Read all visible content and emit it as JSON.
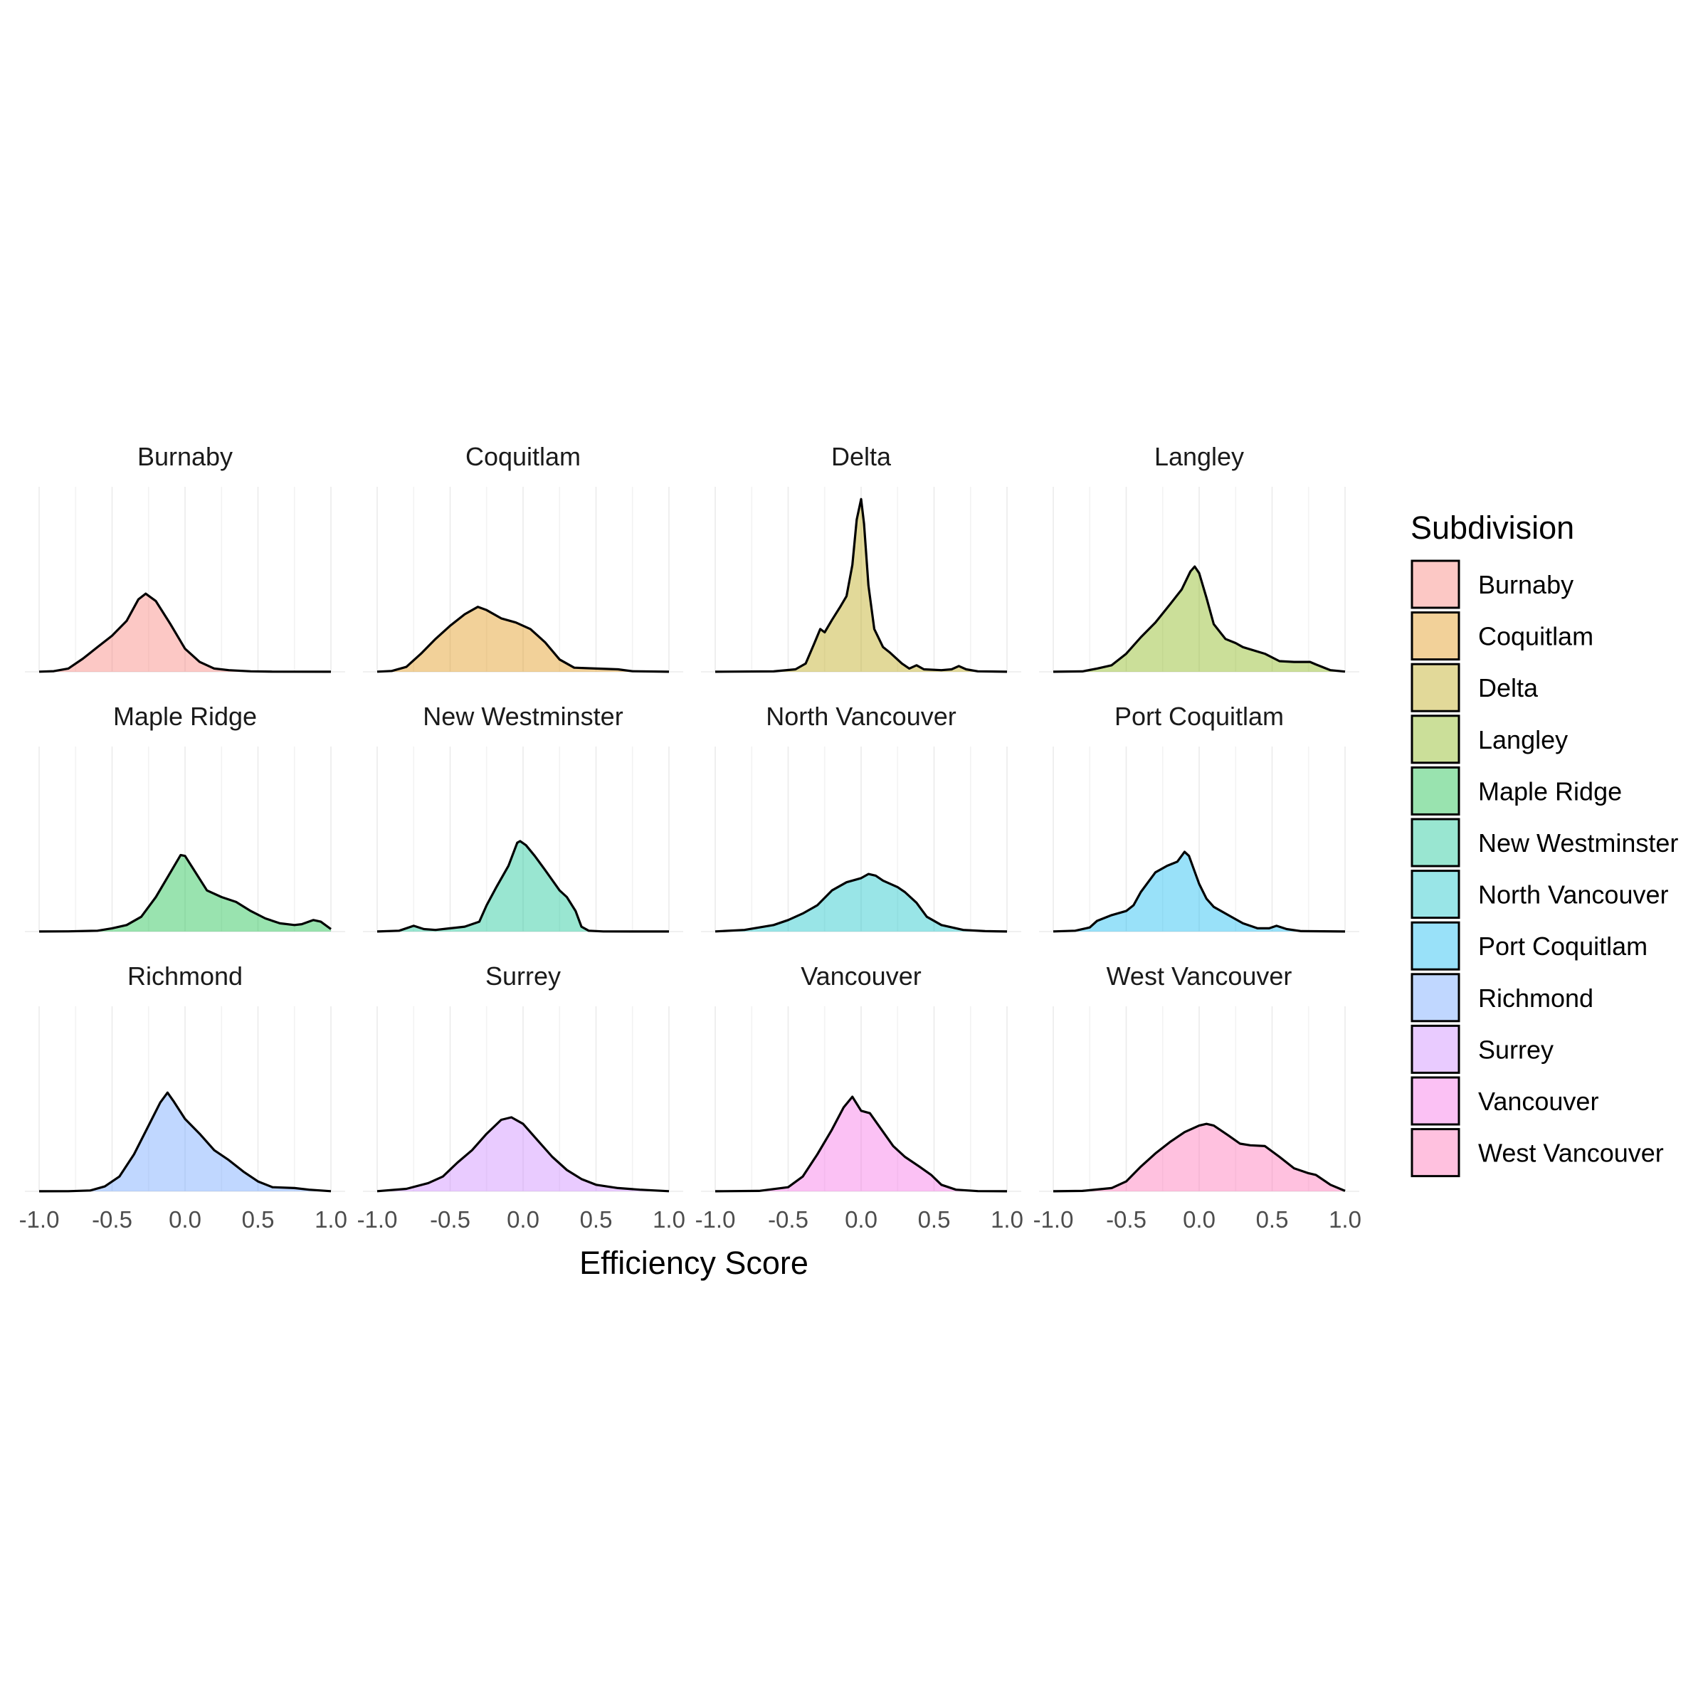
{
  "chart_data": {
    "type": "area",
    "subtype": "faceted density",
    "facet_layout": {
      "rows": 3,
      "cols": 4
    },
    "xlabel": "Efficiency Score",
    "ylabel": "",
    "xlim": [
      -1.0,
      1.0
    ],
    "x_ticks": [
      -1.0,
      -0.5,
      0.0,
      0.5,
      1.0
    ],
    "x_tick_labels": [
      "-1.0",
      "-0.5",
      "0.0",
      "0.5",
      "1.0"
    ],
    "grid": true,
    "legend": {
      "title": "Subdivision",
      "position": "right"
    },
    "series": [
      {
        "name": "Burnaby",
        "color": "#F8766D",
        "points": [
          [
            -1.0,
            0.002
          ],
          [
            -0.9,
            0.008
          ],
          [
            -0.8,
            0.04
          ],
          [
            -0.7,
            0.16
          ],
          [
            -0.6,
            0.3
          ],
          [
            -0.5,
            0.44
          ],
          [
            -0.4,
            0.62
          ],
          [
            -0.32,
            0.88
          ],
          [
            -0.27,
            0.95
          ],
          [
            -0.2,
            0.86
          ],
          [
            -0.1,
            0.58
          ],
          [
            0.0,
            0.28
          ],
          [
            0.1,
            0.12
          ],
          [
            0.2,
            0.04
          ],
          [
            0.3,
            0.02
          ],
          [
            0.45,
            0.006
          ],
          [
            0.6,
            0.002
          ],
          [
            1.0,
            0.001
          ]
        ]
      },
      {
        "name": "Coquitlam",
        "color": "#DE8C00",
        "points": [
          [
            -1.0,
            0.002
          ],
          [
            -0.9,
            0.01
          ],
          [
            -0.8,
            0.06
          ],
          [
            -0.7,
            0.22
          ],
          [
            -0.6,
            0.4
          ],
          [
            -0.5,
            0.56
          ],
          [
            -0.4,
            0.7
          ],
          [
            -0.31,
            0.79
          ],
          [
            -0.25,
            0.75
          ],
          [
            -0.15,
            0.65
          ],
          [
            -0.05,
            0.6
          ],
          [
            0.05,
            0.52
          ],
          [
            0.15,
            0.36
          ],
          [
            0.25,
            0.15
          ],
          [
            0.35,
            0.05
          ],
          [
            0.5,
            0.04
          ],
          [
            0.65,
            0.03
          ],
          [
            0.75,
            0.007
          ],
          [
            1.0,
            0.001
          ]
        ]
      },
      {
        "name": "Delta",
        "color": "#B79F00",
        "points": [
          [
            -1.0,
            0.001
          ],
          [
            -0.6,
            0.005
          ],
          [
            -0.45,
            0.03
          ],
          [
            -0.38,
            0.1
          ],
          [
            -0.32,
            0.35
          ],
          [
            -0.28,
            0.52
          ],
          [
            -0.25,
            0.48
          ],
          [
            -0.2,
            0.63
          ],
          [
            -0.14,
            0.8
          ],
          [
            -0.1,
            0.92
          ],
          [
            -0.06,
            1.3
          ],
          [
            -0.03,
            1.85
          ],
          [
            0.0,
            2.1
          ],
          [
            0.02,
            1.8
          ],
          [
            0.05,
            1.05
          ],
          [
            0.09,
            0.52
          ],
          [
            0.15,
            0.3
          ],
          [
            0.2,
            0.23
          ],
          [
            0.28,
            0.1
          ],
          [
            0.33,
            0.04
          ],
          [
            0.38,
            0.08
          ],
          [
            0.43,
            0.03
          ],
          [
            0.55,
            0.02
          ],
          [
            0.62,
            0.03
          ],
          [
            0.67,
            0.07
          ],
          [
            0.72,
            0.03
          ],
          [
            0.8,
            0.006
          ],
          [
            1.0,
            0.001
          ]
        ]
      },
      {
        "name": "Langley",
        "color": "#7CAE00",
        "points": [
          [
            -1.0,
            0.001
          ],
          [
            -0.8,
            0.005
          ],
          [
            -0.7,
            0.04
          ],
          [
            -0.6,
            0.08
          ],
          [
            -0.5,
            0.22
          ],
          [
            -0.4,
            0.42
          ],
          [
            -0.3,
            0.6
          ],
          [
            -0.2,
            0.82
          ],
          [
            -0.12,
            1.0
          ],
          [
            -0.06,
            1.22
          ],
          [
            -0.03,
            1.28
          ],
          [
            0.0,
            1.2
          ],
          [
            0.05,
            0.9
          ],
          [
            0.1,
            0.58
          ],
          [
            0.18,
            0.4
          ],
          [
            0.25,
            0.35
          ],
          [
            0.3,
            0.3
          ],
          [
            0.45,
            0.22
          ],
          [
            0.55,
            0.13
          ],
          [
            0.65,
            0.12
          ],
          [
            0.76,
            0.12
          ],
          [
            0.8,
            0.09
          ],
          [
            0.9,
            0.02
          ],
          [
            1.0,
            0.003
          ]
        ]
      },
      {
        "name": "Maple Ridge",
        "color": "#00BA38",
        "points": [
          [
            -1.0,
            0.001
          ],
          [
            -0.8,
            0.003
          ],
          [
            -0.6,
            0.01
          ],
          [
            -0.5,
            0.04
          ],
          [
            -0.4,
            0.08
          ],
          [
            -0.3,
            0.18
          ],
          [
            -0.2,
            0.42
          ],
          [
            -0.1,
            0.72
          ],
          [
            -0.03,
            0.93
          ],
          [
            0.0,
            0.92
          ],
          [
            0.05,
            0.78
          ],
          [
            0.15,
            0.5
          ],
          [
            0.25,
            0.42
          ],
          [
            0.35,
            0.36
          ],
          [
            0.45,
            0.25
          ],
          [
            0.55,
            0.16
          ],
          [
            0.65,
            0.1
          ],
          [
            0.75,
            0.08
          ],
          [
            0.8,
            0.09
          ],
          [
            0.88,
            0.14
          ],
          [
            0.93,
            0.12
          ],
          [
            1.0,
            0.03
          ]
        ]
      },
      {
        "name": "New Westminster",
        "color": "#00C08B",
        "points": [
          [
            -1.0,
            0.001
          ],
          [
            -0.85,
            0.01
          ],
          [
            -0.75,
            0.07
          ],
          [
            -0.68,
            0.03
          ],
          [
            -0.6,
            0.02
          ],
          [
            -0.5,
            0.04
          ],
          [
            -0.4,
            0.06
          ],
          [
            -0.3,
            0.12
          ],
          [
            -0.25,
            0.32
          ],
          [
            -0.18,
            0.55
          ],
          [
            -0.1,
            0.8
          ],
          [
            -0.04,
            1.08
          ],
          [
            -0.02,
            1.1
          ],
          [
            0.02,
            1.05
          ],
          [
            0.08,
            0.92
          ],
          [
            0.15,
            0.75
          ],
          [
            0.25,
            0.5
          ],
          [
            0.3,
            0.42
          ],
          [
            0.36,
            0.25
          ],
          [
            0.4,
            0.06
          ],
          [
            0.45,
            0.01
          ],
          [
            0.55,
            0.002
          ],
          [
            1.0,
            0.001
          ]
        ]
      },
      {
        "name": "North Vancouver",
        "color": "#00BFC4",
        "points": [
          [
            -1.0,
            0.002
          ],
          [
            -0.8,
            0.02
          ],
          [
            -0.6,
            0.08
          ],
          [
            -0.5,
            0.14
          ],
          [
            -0.4,
            0.22
          ],
          [
            -0.3,
            0.32
          ],
          [
            -0.2,
            0.5
          ],
          [
            -0.1,
            0.6
          ],
          [
            0.0,
            0.65
          ],
          [
            0.05,
            0.7
          ],
          [
            0.1,
            0.68
          ],
          [
            0.15,
            0.62
          ],
          [
            0.25,
            0.54
          ],
          [
            0.3,
            0.48
          ],
          [
            0.38,
            0.35
          ],
          [
            0.45,
            0.18
          ],
          [
            0.55,
            0.08
          ],
          [
            0.7,
            0.02
          ],
          [
            0.85,
            0.005
          ],
          [
            1.0,
            0.001
          ]
        ]
      },
      {
        "name": "Port Coquitlam",
        "color": "#00B4F0",
        "points": [
          [
            -1.0,
            0.002
          ],
          [
            -0.85,
            0.01
          ],
          [
            -0.75,
            0.05
          ],
          [
            -0.7,
            0.13
          ],
          [
            -0.6,
            0.2
          ],
          [
            -0.5,
            0.25
          ],
          [
            -0.45,
            0.32
          ],
          [
            -0.4,
            0.48
          ],
          [
            -0.3,
            0.72
          ],
          [
            -0.22,
            0.8
          ],
          [
            -0.15,
            0.85
          ],
          [
            -0.1,
            0.97
          ],
          [
            -0.07,
            0.92
          ],
          [
            0.0,
            0.58
          ],
          [
            0.05,
            0.4
          ],
          [
            0.1,
            0.3
          ],
          [
            0.2,
            0.2
          ],
          [
            0.3,
            0.1
          ],
          [
            0.4,
            0.04
          ],
          [
            0.48,
            0.04
          ],
          [
            0.53,
            0.07
          ],
          [
            0.6,
            0.03
          ],
          [
            0.7,
            0.005
          ],
          [
            1.0,
            0.001
          ]
        ]
      },
      {
        "name": "Richmond",
        "color": "#619CFF",
        "points": [
          [
            -1.0,
            0.001
          ],
          [
            -0.8,
            0.002
          ],
          [
            -0.65,
            0.01
          ],
          [
            -0.55,
            0.06
          ],
          [
            -0.45,
            0.18
          ],
          [
            -0.35,
            0.45
          ],
          [
            -0.25,
            0.8
          ],
          [
            -0.17,
            1.08
          ],
          [
            -0.12,
            1.2
          ],
          [
            -0.08,
            1.1
          ],
          [
            0.0,
            0.88
          ],
          [
            0.1,
            0.7
          ],
          [
            0.2,
            0.5
          ],
          [
            0.3,
            0.38
          ],
          [
            0.4,
            0.24
          ],
          [
            0.5,
            0.12
          ],
          [
            0.6,
            0.05
          ],
          [
            0.75,
            0.04
          ],
          [
            0.85,
            0.02
          ],
          [
            1.0,
            0.002
          ]
        ]
      },
      {
        "name": "Surrey",
        "color": "#C77CFF",
        "points": [
          [
            -1.0,
            0.002
          ],
          [
            -0.8,
            0.03
          ],
          [
            -0.65,
            0.1
          ],
          [
            -0.55,
            0.18
          ],
          [
            -0.45,
            0.35
          ],
          [
            -0.35,
            0.5
          ],
          [
            -0.25,
            0.7
          ],
          [
            -0.15,
            0.87
          ],
          [
            -0.08,
            0.9
          ],
          [
            0.0,
            0.82
          ],
          [
            0.1,
            0.62
          ],
          [
            0.2,
            0.42
          ],
          [
            0.3,
            0.26
          ],
          [
            0.4,
            0.15
          ],
          [
            0.5,
            0.08
          ],
          [
            0.65,
            0.04
          ],
          [
            0.8,
            0.02
          ],
          [
            1.0,
            0.002
          ]
        ]
      },
      {
        "name": "Vancouver",
        "color": "#F564E3",
        "points": [
          [
            -1.0,
            0.001
          ],
          [
            -0.7,
            0.005
          ],
          [
            -0.5,
            0.05
          ],
          [
            -0.4,
            0.18
          ],
          [
            -0.3,
            0.45
          ],
          [
            -0.2,
            0.75
          ],
          [
            -0.12,
            1.02
          ],
          [
            -0.06,
            1.15
          ],
          [
            0.0,
            0.98
          ],
          [
            0.06,
            0.95
          ],
          [
            0.12,
            0.8
          ],
          [
            0.22,
            0.55
          ],
          [
            0.3,
            0.42
          ],
          [
            0.4,
            0.3
          ],
          [
            0.48,
            0.2
          ],
          [
            0.55,
            0.08
          ],
          [
            0.65,
            0.02
          ],
          [
            0.8,
            0.003
          ],
          [
            1.0,
            0.001
          ]
        ]
      },
      {
        "name": "West Vancouver",
        "color": "#FF64B0",
        "points": [
          [
            -1.0,
            0.001
          ],
          [
            -0.8,
            0.005
          ],
          [
            -0.6,
            0.04
          ],
          [
            -0.5,
            0.12
          ],
          [
            -0.4,
            0.3
          ],
          [
            -0.3,
            0.46
          ],
          [
            -0.2,
            0.6
          ],
          [
            -0.1,
            0.72
          ],
          [
            0.0,
            0.8
          ],
          [
            0.05,
            0.82
          ],
          [
            0.1,
            0.8
          ],
          [
            0.2,
            0.68
          ],
          [
            0.28,
            0.58
          ],
          [
            0.35,
            0.56
          ],
          [
            0.45,
            0.55
          ],
          [
            0.55,
            0.42
          ],
          [
            0.65,
            0.28
          ],
          [
            0.75,
            0.22
          ],
          [
            0.8,
            0.2
          ],
          [
            0.9,
            0.08
          ],
          [
            1.0,
            0.005
          ]
        ]
      }
    ]
  }
}
